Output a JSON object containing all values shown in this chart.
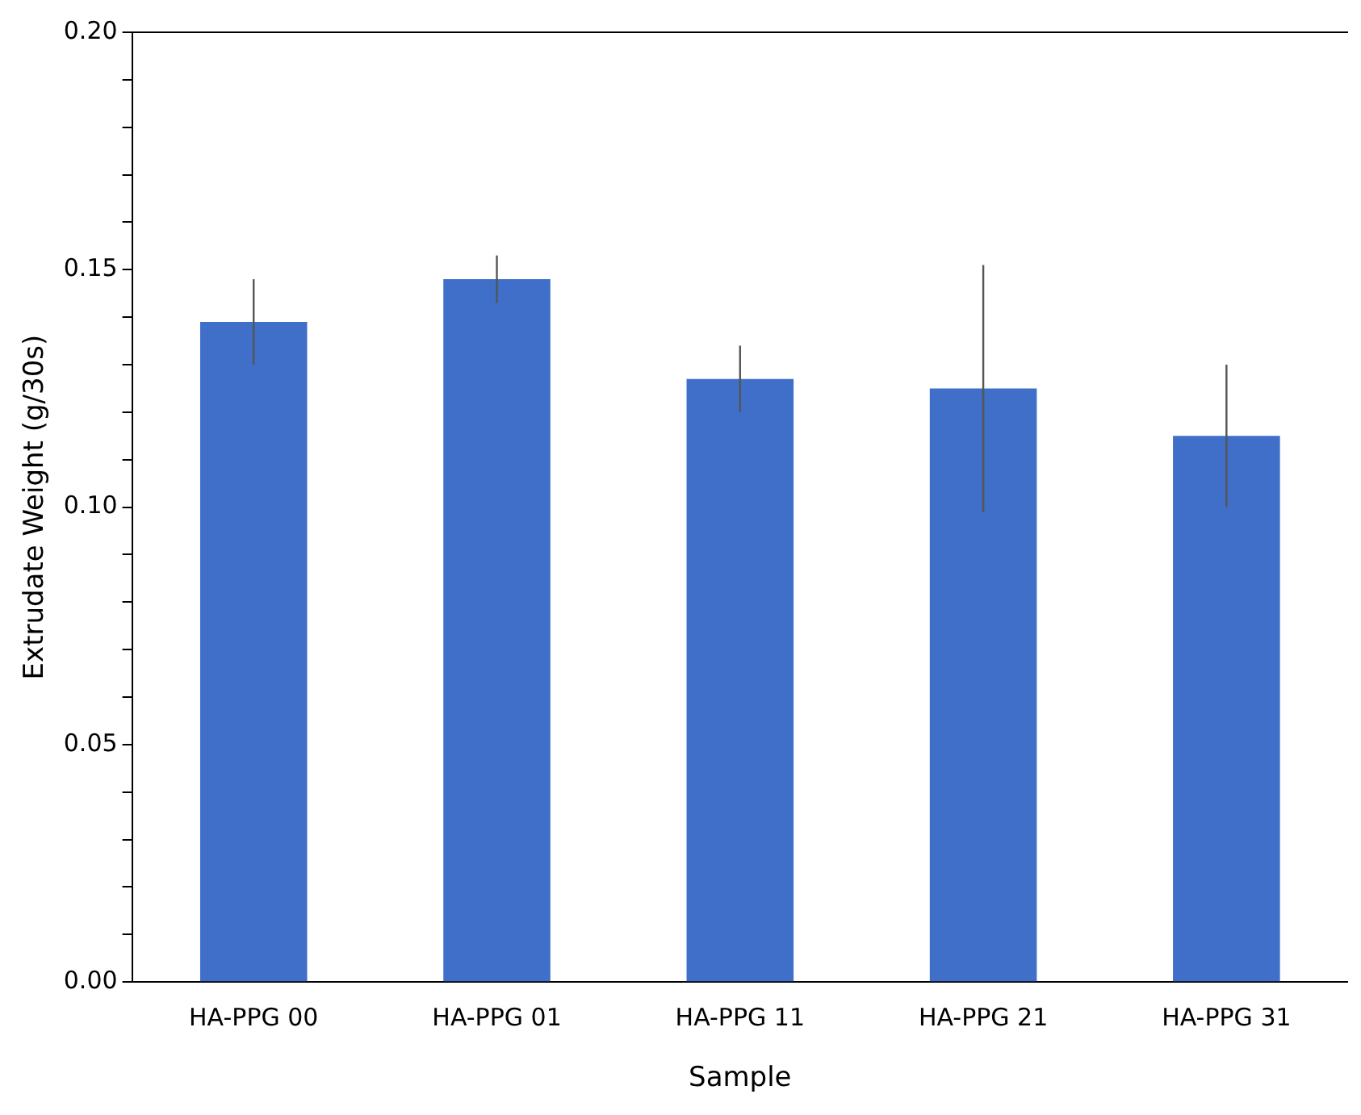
{
  "chart_data": {
    "type": "bar",
    "xlabel": "Sample",
    "ylabel": "Extrudate Weight (g/30s)",
    "categories": [
      "HA-PPG 00",
      "HA-PPG 01",
      "HA-PPG 11",
      "HA-PPG 21",
      "HA-PPG 31"
    ],
    "values": [
      0.139,
      0.148,
      0.127,
      0.125,
      0.115
    ],
    "errors": [
      0.009,
      0.005,
      0.007,
      0.026,
      0.015
    ],
    "color": "#3f6fc8",
    "ylim": [
      0,
      0.2
    ],
    "yticks": [
      {
        "value": 0,
        "label": "0.00"
      },
      {
        "value": 0.01,
        "label": null
      },
      {
        "value": 0.02,
        "label": null
      },
      {
        "value": 0.03,
        "label": null
      },
      {
        "value": 0.04,
        "label": null
      },
      {
        "value": 0.05,
        "label": "0.05"
      },
      {
        "value": 0.06,
        "label": null
      },
      {
        "value": 0.07,
        "label": null
      },
      {
        "value": 0.08,
        "label": null
      },
      {
        "value": 0.09,
        "label": null
      },
      {
        "value": 0.1,
        "label": "0.10"
      },
      {
        "value": 0.11,
        "label": null
      },
      {
        "value": 0.12,
        "label": null
      },
      {
        "value": 0.13,
        "label": null
      },
      {
        "value": 0.14,
        "label": null
      },
      {
        "value": 0.15,
        "label": "0.15"
      },
      {
        "value": 0.16,
        "label": null
      },
      {
        "value": 0.17,
        "label": null
      },
      {
        "value": 0.18,
        "label": null
      },
      {
        "value": 0.19,
        "label": null
      },
      {
        "value": 0.2,
        "label": "0.20"
      }
    ],
    "grid": false,
    "legend": false
  }
}
